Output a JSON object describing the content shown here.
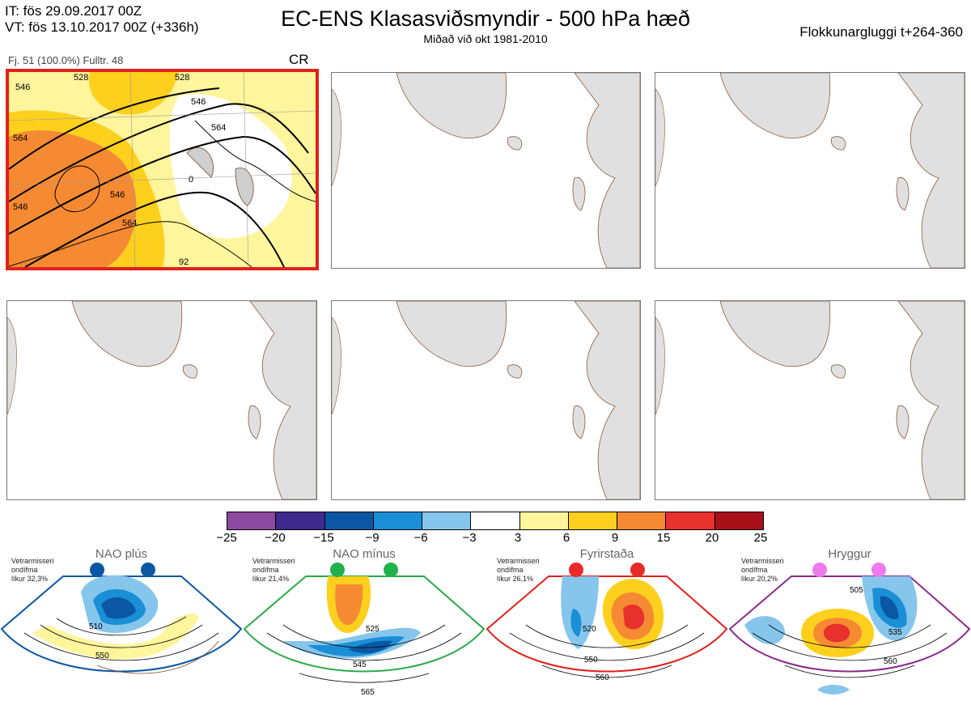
{
  "header": {
    "it_line": "IT: fös 29.09.2017 00Z",
    "vt_line": "VT: fös 13.10.2017 00Z  (+336h)",
    "title": "EC-ENS Klasasviðsmyndir - 500 hPa hæð",
    "subtitle": "Miðað við okt 1981-2010",
    "window": "Flokkunargluggi t+264-360"
  },
  "cluster": {
    "info": "Fj. 51 (100.0%)  Fulltr. 48",
    "label": "CR",
    "contour_labels": [
      "546",
      "528",
      "528",
      "546",
      "564",
      "546",
      "564",
      "546",
      "564",
      "0",
      "92"
    ]
  },
  "colorbar": {
    "ticks": [
      "−25",
      "−20",
      "−15",
      "−9",
      "−6",
      "−3",
      "3",
      "6",
      "9",
      "15",
      "20",
      "25"
    ],
    "colors": [
      "#8b4a9f",
      "#3e2a8c",
      "#0b57a3",
      "#1a8fd6",
      "#86c6ec",
      "#ffffff",
      "#fff59c",
      "#fdd01e",
      "#f58a33",
      "#e8302d",
      "#a8101a"
    ]
  },
  "regimes": [
    {
      "name": "NAO plús",
      "note1": "Vetrarmisseri",
      "note2": "ondífma",
      "note3": "líkur 32,3%",
      "labels": [
        "510",
        "550"
      ],
      "color": "#0b57a3",
      "dot": "#0b57a3"
    },
    {
      "name": "NAO mínus",
      "note1": "Vetrarmisseri",
      "note2": "ondífma",
      "note3": "líkur 21,4%",
      "labels": [
        "525",
        "545",
        "565"
      ],
      "color": "#2aa94a",
      "dot": "#22b24c"
    },
    {
      "name": "Fyrirstaða",
      "note1": "Vetrarmisseri",
      "note2": "ondífma",
      "note3": "líkur 26,1%",
      "labels": [
        "520",
        "550",
        "560"
      ],
      "color": "#e0201a",
      "dot": "#e82a2a"
    },
    {
      "name": "Hryggur",
      "note1": "Vetrarmisseri",
      "note2": "ondífma",
      "note3": "líkur 20,2%",
      "labels": [
        "505",
        "535",
        "560"
      ],
      "color": "#8a2a8a",
      "dot": "#ee7aee"
    }
  ]
}
